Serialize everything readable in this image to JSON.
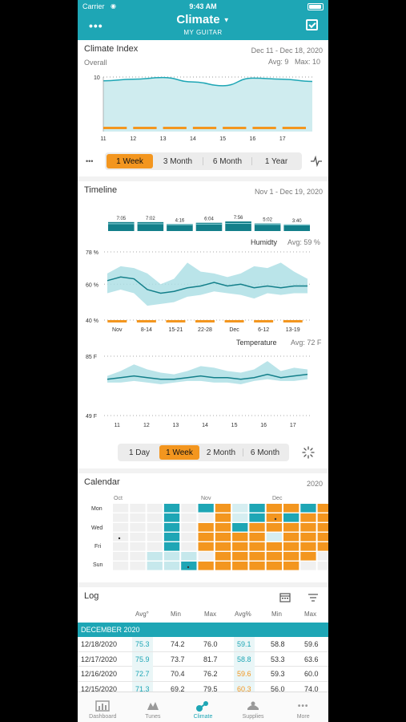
{
  "status": {
    "carrier": "Carrier",
    "time": "9:43 AM"
  },
  "header": {
    "title": "Climate",
    "subtitle": "MY GUITAR"
  },
  "climate_index": {
    "title": "Climate Index",
    "subtitle": "Overall",
    "date_range": "Dec 11 - Dec 18, 2020",
    "avg_label": "Avg: 9",
    "max_label": "Max: 10",
    "range_options": [
      "1 Week",
      "3 Month",
      "6 Month",
      "1 Year"
    ],
    "selected": "1 Week",
    "more_label": "•••"
  },
  "timeline": {
    "title": "Timeline",
    "date_range": "Nov 1 - Dec 19, 2020",
    "humidity_label": "Humidty",
    "humidity_avg": "Avg: 59 %",
    "temperature_label": "Temperature",
    "temperature_avg": "Avg: 72 F",
    "range_options": [
      "1 Day",
      "1 Week",
      "2 Month",
      "6 Month"
    ],
    "selected": "1 Week"
  },
  "calendar": {
    "title": "Calendar",
    "year": "2020",
    "months": [
      "Oct",
      "Nov",
      "Dec"
    ],
    "weekdays": [
      "Mon",
      "Wed",
      "Fri",
      "Sun"
    ]
  },
  "log": {
    "title": "Log",
    "columns": [
      "Avg°",
      "Min",
      "Max",
      "Avg%",
      "Min",
      "Max"
    ],
    "section": "DECEMBER 2020",
    "rows": [
      {
        "date": "12/18/2020",
        "t_avg": "75.3",
        "t_min": "74.2",
        "t_max": "76.0",
        "h_avg": "59.1",
        "h_min": "58.8",
        "h_max": "59.6"
      },
      {
        "date": "12/17/2020",
        "t_avg": "75.9",
        "t_min": "73.7",
        "t_max": "81.7",
        "h_avg": "58.8",
        "h_min": "53.3",
        "h_max": "63.6"
      },
      {
        "date": "12/16/2020",
        "t_avg": "72.7",
        "t_min": "70.4",
        "t_max": "76.2",
        "h_avg": "59.6",
        "h_min": "59.3",
        "h_max": "60.0"
      },
      {
        "date": "12/15/2020",
        "t_avg": "71.3",
        "t_min": "69.2",
        "t_max": "79.5",
        "h_avg": "60.3",
        "h_min": "56.0",
        "h_max": "74.0"
      }
    ]
  },
  "tabs": [
    {
      "label": "Dashboard",
      "icon": "dashboard-icon"
    },
    {
      "label": "Tunes",
      "icon": "tunes-icon"
    },
    {
      "label": "Climate",
      "icon": "climate-icon"
    },
    {
      "label": "Supplies",
      "icon": "supplies-icon"
    },
    {
      "label": "More",
      "icon": "more-icon"
    }
  ],
  "colors": {
    "teal": "#1ea6b5",
    "teal_dark": "#137f8a",
    "teal_light": "#a9dde3",
    "orange": "#f3961f"
  },
  "chart_data": [
    {
      "type": "area",
      "name": "climate-index",
      "x": [
        11,
        12,
        13,
        14,
        15,
        16,
        17,
        18
      ],
      "xticks": [
        "11",
        "12",
        "13",
        "14",
        "15",
        "16",
        "17"
      ],
      "y": [
        9.3,
        9.6,
        9.9,
        9.1,
        8.4,
        9.8,
        9.6,
        9.2
      ],
      "yticks": [
        "10"
      ],
      "ylim": [
        0,
        10
      ]
    },
    {
      "type": "bar",
      "name": "timeline-hours",
      "categories": [
        "Nov",
        "8-14",
        "15-21",
        "22-28",
        "Dec",
        "6-12",
        "13-19"
      ],
      "data_labels": [
        "7:05",
        "7:02",
        "4:16",
        "6:04",
        "7:56",
        "5:02",
        "3:40"
      ],
      "values": [
        7.08,
        7.03,
        4.27,
        6.07,
        7.93,
        5.03,
        3.67
      ]
    },
    {
      "type": "line",
      "name": "humidity",
      "yticks": [
        "78 %",
        "60 %",
        "40 %"
      ],
      "ylim": [
        40,
        78
      ],
      "xticks": [
        "Nov",
        "8-14",
        "15-21",
        "22-28",
        "Dec",
        "6-12",
        "13-19"
      ],
      "avg": [
        62,
        64,
        63,
        57,
        55,
        56,
        58,
        59,
        61,
        59,
        60,
        58,
        59,
        58,
        59,
        59
      ],
      "min": [
        55,
        57,
        55,
        48,
        49,
        50,
        53,
        54,
        56,
        55,
        54,
        52,
        55,
        54,
        55,
        55
      ],
      "max": [
        66,
        70,
        69,
        66,
        60,
        63,
        72,
        67,
        66,
        64,
        66,
        70,
        69,
        72,
        67,
        63
      ]
    },
    {
      "type": "line",
      "name": "temperature",
      "yticks": [
        "85 F",
        "49 F"
      ],
      "ylim": [
        49,
        85
      ],
      "xticks": [
        "11",
        "12",
        "13",
        "14",
        "15",
        "16",
        "17"
      ],
      "avg": [
        71,
        72,
        73,
        72,
        71,
        71,
        72,
        73,
        72,
        72,
        71,
        72,
        74,
        72,
        73,
        74
      ],
      "min": [
        69,
        69,
        70,
        69,
        68,
        69,
        70,
        70,
        69,
        69,
        68,
        70,
        71,
        70,
        70,
        71
      ],
      "max": [
        73,
        76,
        80,
        77,
        75,
        74,
        76,
        79,
        78,
        76,
        75,
        77,
        82,
        76,
        78,
        77
      ]
    }
  ]
}
